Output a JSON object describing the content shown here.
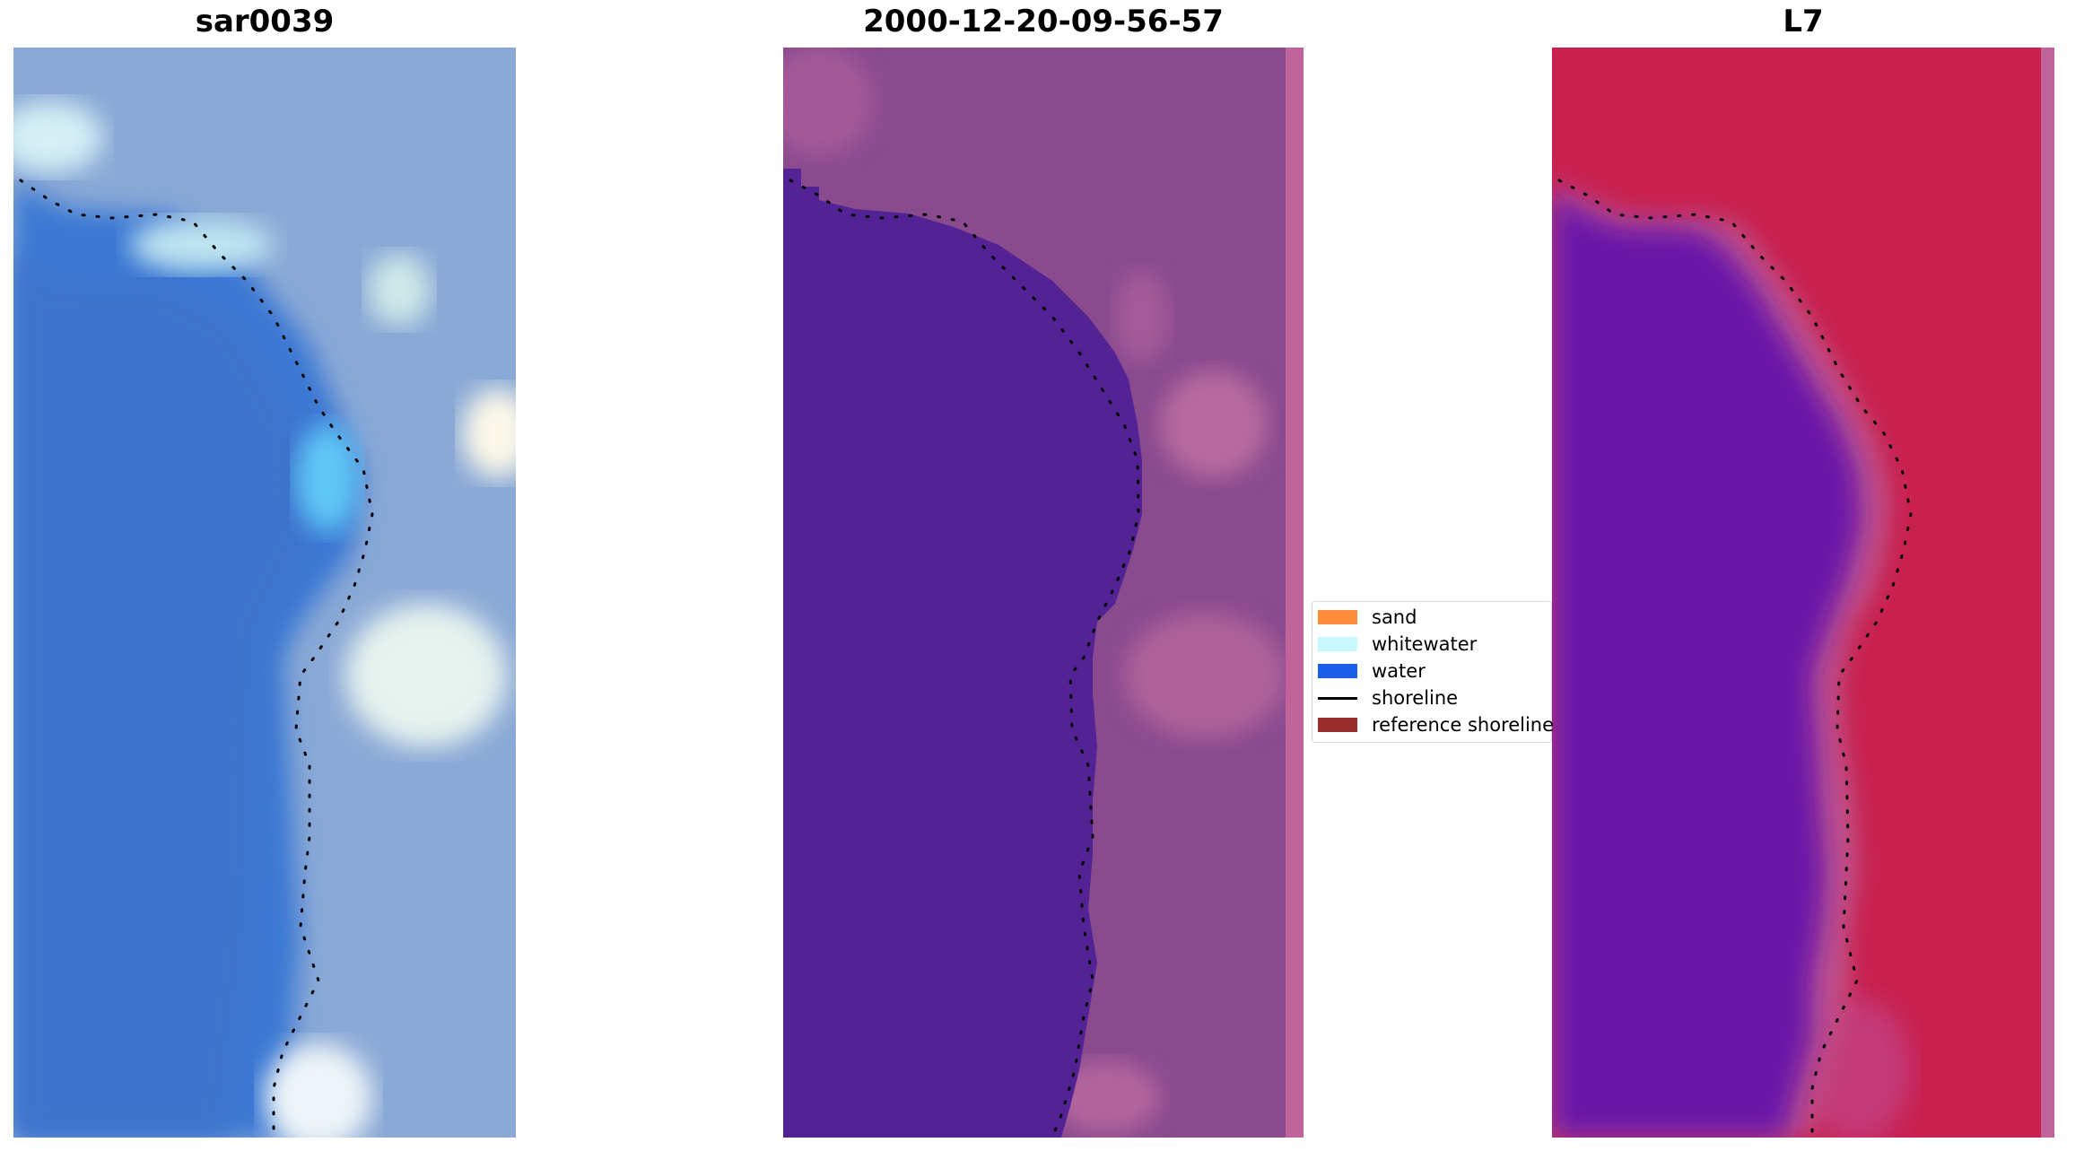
{
  "panels": [
    {
      "title": "sar0039"
    },
    {
      "title": "2000-12-20-09-56-57"
    },
    {
      "title": "L7"
    }
  ],
  "legend": {
    "items": [
      {
        "label": "sand",
        "color": "#ff8c3a",
        "kind": "patch"
      },
      {
        "label": "whitewater",
        "color": "#c8f8ff",
        "kind": "patch"
      },
      {
        "label": "water",
        "color": "#1b5fe8",
        "kind": "patch"
      },
      {
        "label": "shoreline",
        "color": "#000000",
        "kind": "line"
      },
      {
        "label": "reference shoreline",
        "color": "#9b2d2d",
        "kind": "patch"
      }
    ]
  },
  "colors": {
    "rgb_water": "#3a78d4",
    "rgb_land": "#7fa6d8",
    "classified_water": "#532396",
    "classified_land": "#8a4a8e",
    "classified_edge_strip": "#c0639a",
    "index_water": "#6a16a8",
    "index_land": "#c8204e",
    "shoreline_dots": "#000000"
  }
}
